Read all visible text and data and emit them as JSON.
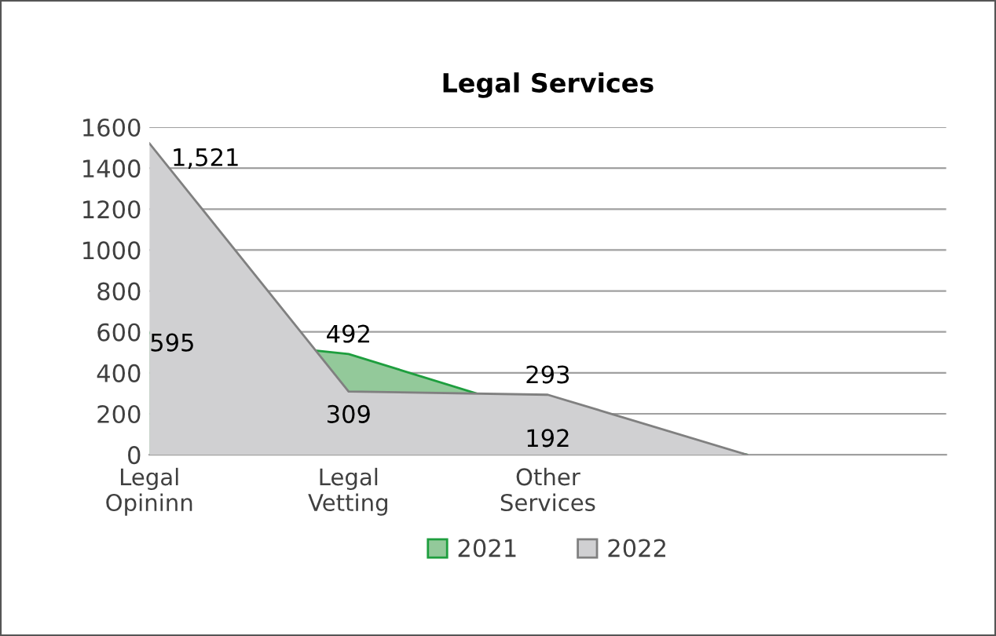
{
  "chart_data": {
    "type": "area",
    "title": "Legal Services",
    "categories": [
      "Legal Opininn",
      "Legal Vetting",
      "Other Services",
      null,
      null
    ],
    "series": [
      {
        "name": "2021",
        "color": "#93c99a",
        "values": [
          595,
          492,
          192,
          0,
          null
        ],
        "value_labels": [
          "595",
          "492",
          "192",
          null,
          null
        ]
      },
      {
        "name": "2022",
        "color": "#d0d0d2",
        "values": [
          1521,
          309,
          293,
          0,
          null
        ],
        "value_labels": [
          "1,521",
          "309",
          "293",
          null,
          null
        ]
      }
    ],
    "ylim": [
      0,
      1600
    ],
    "yticks": [
      0,
      200,
      400,
      600,
      800,
      1000,
      1200,
      1400,
      1600
    ],
    "grid": "y",
    "legend": "bottom"
  }
}
